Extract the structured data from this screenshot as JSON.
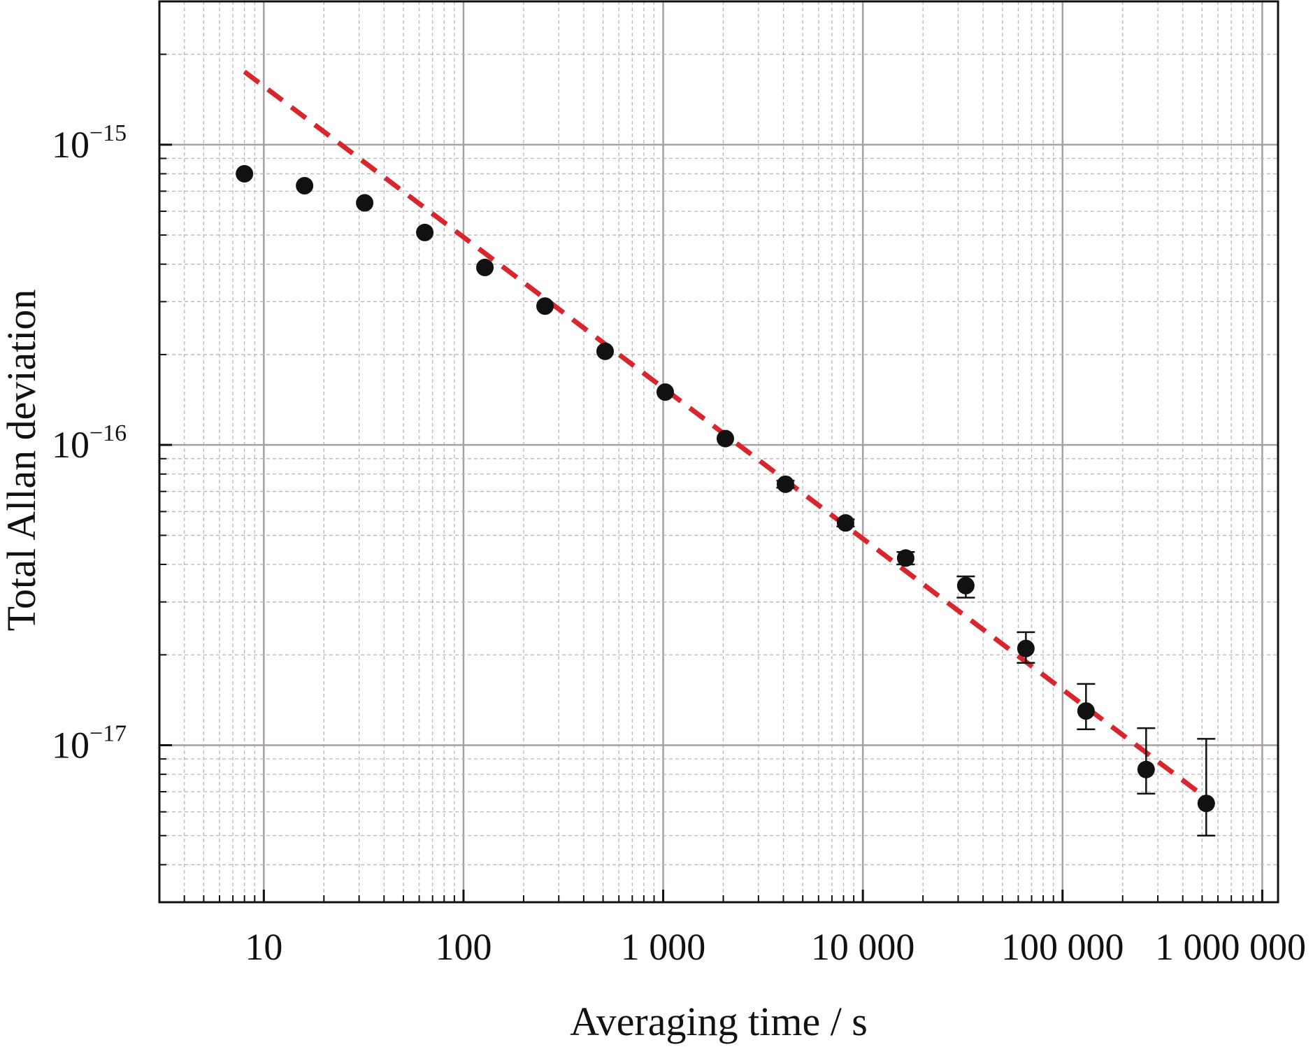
{
  "chart_data": {
    "type": "scatter",
    "title": "",
    "xlabel": "Averaging time / s",
    "ylabel": "Total Allan deviation",
    "x_scale": "log",
    "y_scale": "log",
    "xlim": [
      3,
      1200000
    ],
    "ylim": [
      3e-18,
      3e-15
    ],
    "x_ticks": [
      {
        "value": 10,
        "label": "10"
      },
      {
        "value": 100,
        "label": "100"
      },
      {
        "value": 1000,
        "label": "1 000"
      },
      {
        "value": 10000,
        "label": "10 000"
      },
      {
        "value": 100000,
        "label": "100 000"
      },
      {
        "value": 1000000,
        "label": "1 000 000"
      }
    ],
    "y_ticks": [
      {
        "value": 1e-15,
        "base": "10",
        "exp": "−15"
      },
      {
        "value": 1e-16,
        "base": "10",
        "exp": "−16"
      },
      {
        "value": 1e-17,
        "base": "10",
        "exp": "−17"
      }
    ],
    "grid": {
      "major": true,
      "minor": true
    },
    "series": [
      {
        "kind": "points_with_error_bars",
        "color": "#111111",
        "x": [
          8,
          16,
          32,
          64,
          128,
          256,
          512,
          1024,
          2048,
          4096,
          8192,
          16384,
          32768,
          65536,
          131072,
          262144,
          524288
        ],
        "y": [
          8e-16,
          7.3e-16,
          6.4e-16,
          5.1e-16,
          3.9e-16,
          2.9e-16,
          2.05e-16,
          1.5e-16,
          1.05e-16,
          7.4e-17,
          5.5e-17,
          4.2e-17,
          3.4e-17,
          2.1e-17,
          1.3e-17,
          8.3e-18,
          6.4e-18
        ],
        "y_err_low": [
          null,
          null,
          null,
          null,
          null,
          null,
          null,
          null,
          null,
          7.2e-17,
          5.35e-17,
          4e-17,
          3.1e-17,
          1.88e-17,
          1.13e-17,
          6.9e-18,
          5e-18
        ],
        "y_err_high": [
          null,
          null,
          null,
          null,
          null,
          null,
          null,
          null,
          null,
          7.6e-17,
          5.65e-17,
          4.4e-17,
          3.65e-17,
          2.38e-17,
          1.6e-17,
          1.14e-17,
          1.05e-17
        ]
      },
      {
        "kind": "fit_line",
        "style": "dashed",
        "color": "#d9262c",
        "x": [
          8,
          520000
        ],
        "y": [
          1.75e-15,
          6.7e-18
        ]
      }
    ]
  }
}
